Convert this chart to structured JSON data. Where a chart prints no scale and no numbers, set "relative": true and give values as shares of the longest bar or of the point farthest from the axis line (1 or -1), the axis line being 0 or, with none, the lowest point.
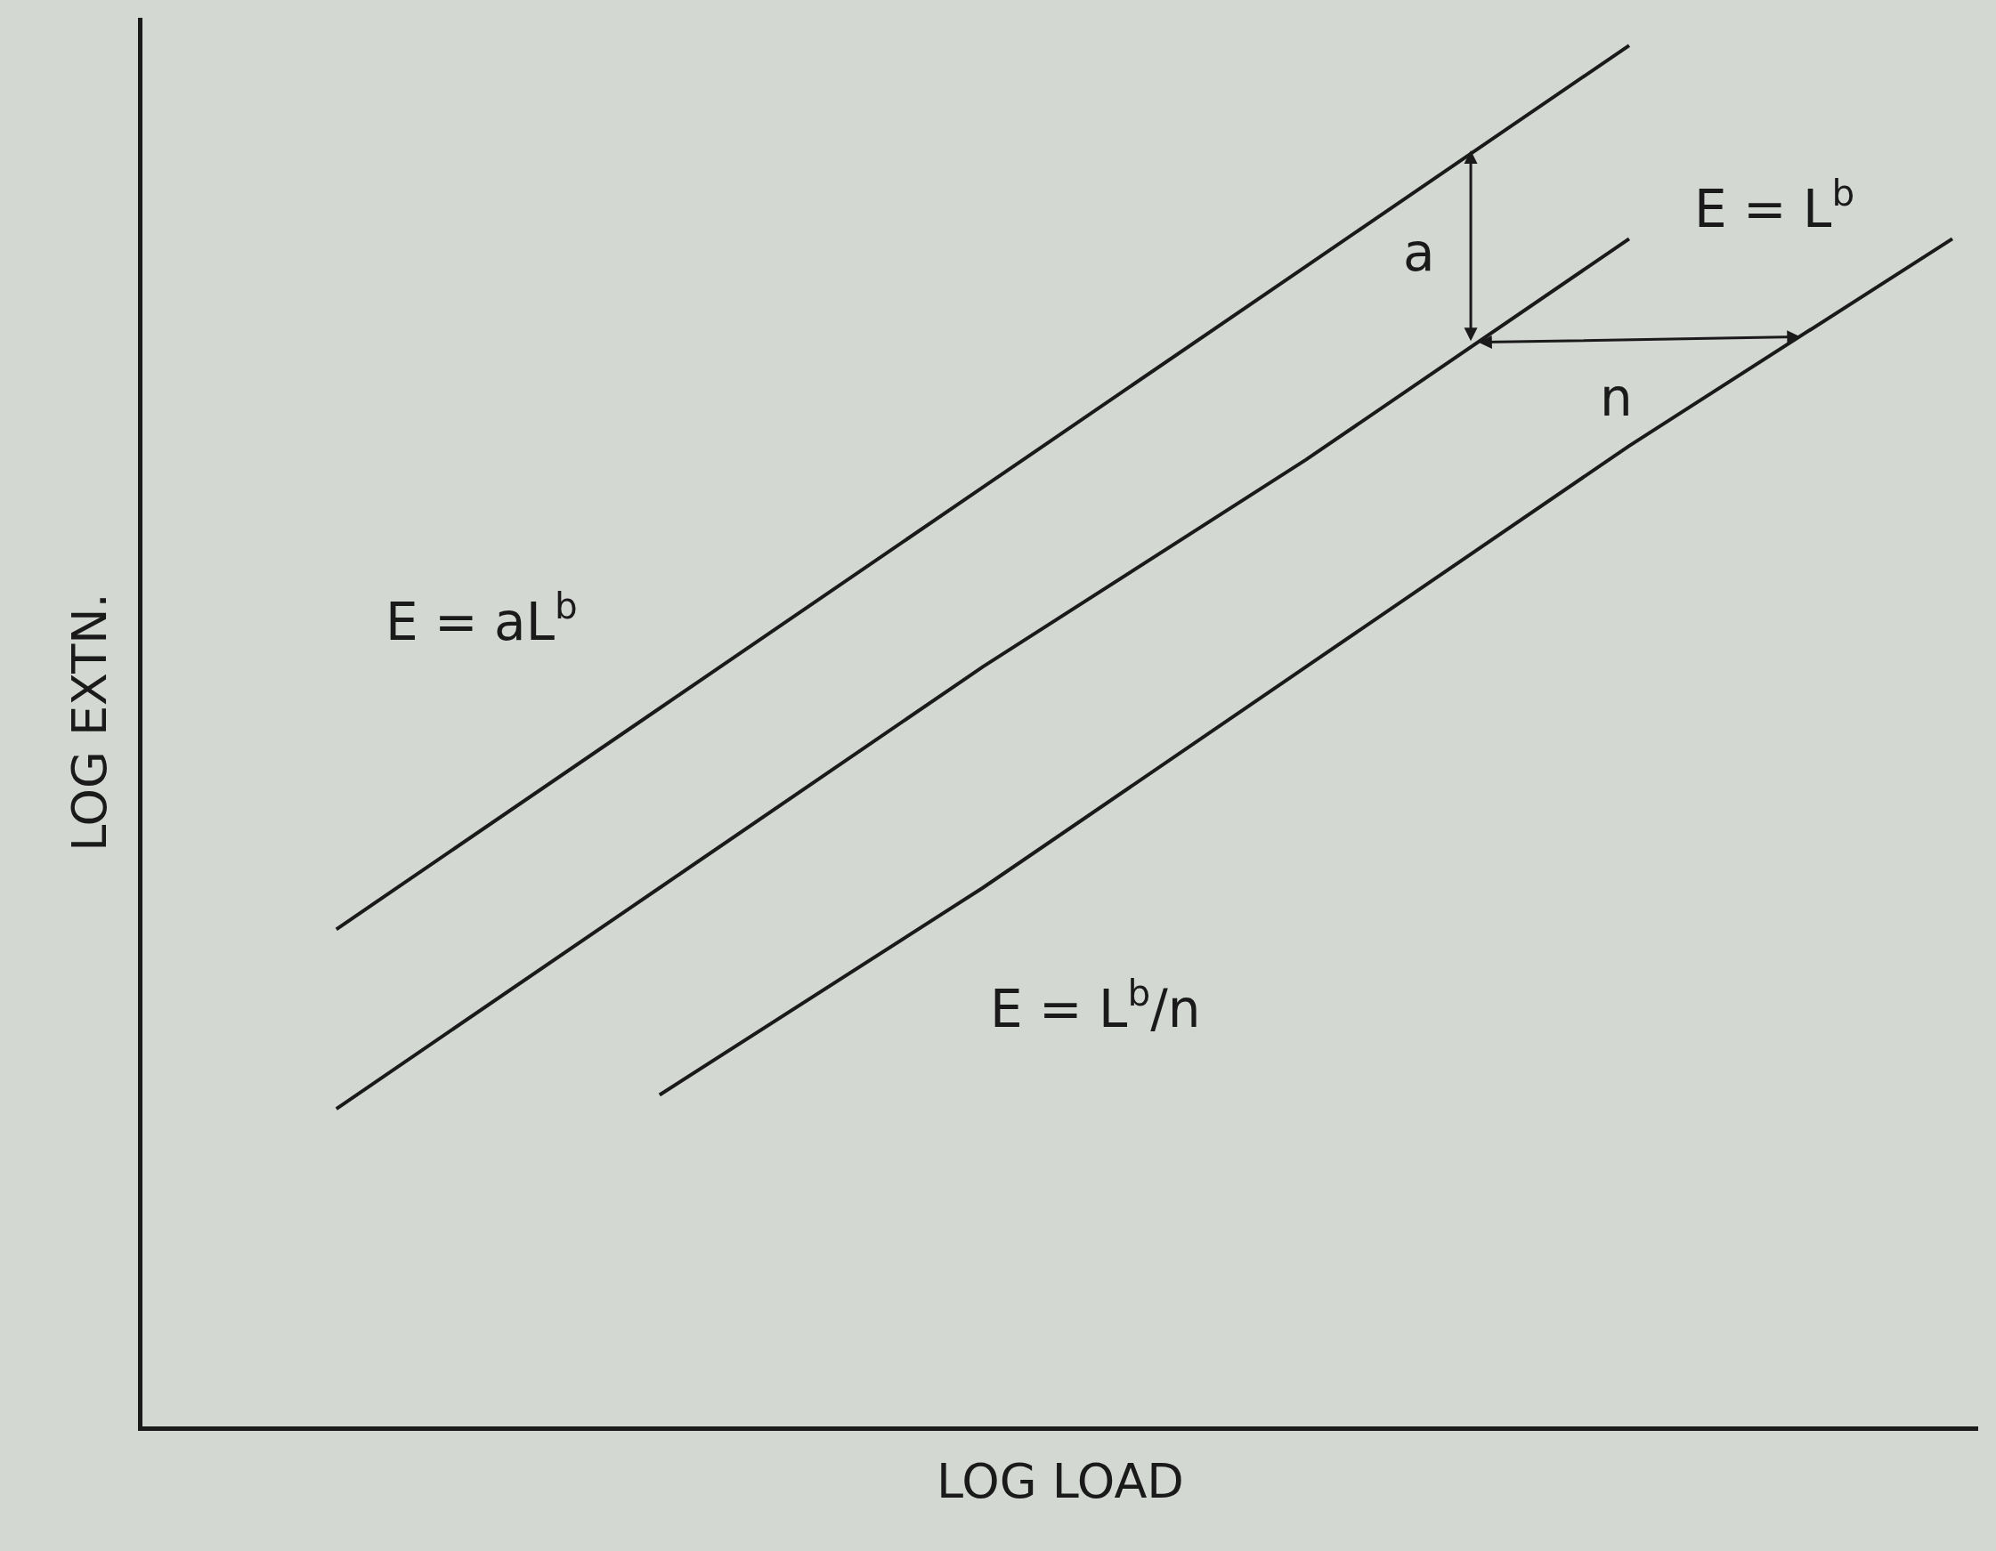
{
  "chart_data": {
    "type": "line",
    "relative": true,
    "xlabel": "LOG LOAD",
    "ylabel": "LOG EXTN.",
    "categories": [
      null,
      null,
      null,
      null,
      null,
      null
    ],
    "series": [
      {
        "color": "#1a1a1a",
        "values": [
          0.36,
          0.52,
          0.68,
          0.84,
          1.0,
          null
        ]
      },
      {
        "color": "#1a1a1a",
        "values": [
          0.23,
          0.39,
          0.55,
          0.7,
          0.86,
          null
        ]
      },
      {
        "color": "#1a1a1a",
        "values": [
          null,
          0.24,
          0.39,
          0.55,
          0.71,
          0.86
        ]
      }
    ],
    "annotations": [
      "E = aL$^{b}$",
      "E = L$^{b}$",
      "E = L$^{b}$/n",
      "a",
      "n"
    ],
    "marker": "none",
    "line_style": "solid"
  }
}
